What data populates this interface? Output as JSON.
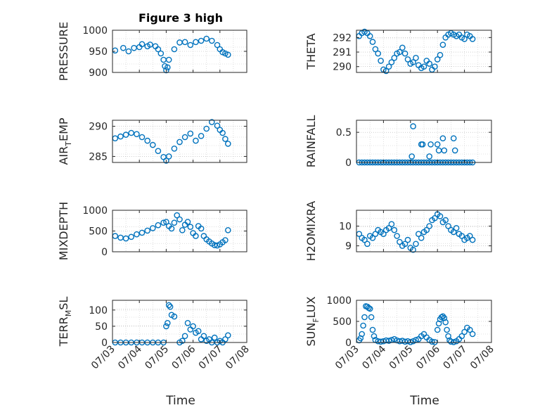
{
  "figure": {
    "title": "Figure 3 high",
    "xlabel": "Time",
    "marker_color": "#0072bd"
  },
  "chart_data": [
    {
      "type": "scatter",
      "name": "PRESSURE",
      "ylabel": "PRESSURE",
      "ylim": [
        900,
        1000
      ],
      "yticks": [
        900,
        950,
        1000
      ],
      "ytick_labels": [
        "900",
        "950",
        "1000"
      ],
      "grid": true,
      "x": [
        3.1,
        3.4,
        3.6,
        3.8,
        4.0,
        4.1,
        4.3,
        4.4,
        4.6,
        4.7,
        4.8,
        4.9,
        4.95,
        5.0,
        5.05,
        5.1,
        5.3,
        5.5,
        5.7,
        5.9,
        6.1,
        6.3,
        6.5,
        6.7,
        6.9,
        7.0,
        7.1,
        7.2,
        7.3
      ],
      "y": [
        952,
        958,
        950,
        958,
        960,
        967,
        962,
        966,
        962,
        955,
        945,
        930,
        915,
        905,
        912,
        930,
        955,
        971,
        972,
        965,
        972,
        975,
        980,
        975,
        965,
        955,
        948,
        945,
        942
      ]
    },
    {
      "type": "scatter",
      "name": "THETA",
      "ylabel": "THETA",
      "ylim": [
        289.6,
        292.5
      ],
      "yticks": [
        290,
        291,
        292
      ],
      "ytick_labels": [
        "290",
        "291",
        "292"
      ],
      "grid": true,
      "x": [
        3.1,
        3.2,
        3.3,
        3.4,
        3.5,
        3.6,
        3.7,
        3.8,
        3.9,
        4.0,
        4.1,
        4.2,
        4.3,
        4.4,
        4.5,
        4.6,
        4.7,
        4.8,
        4.9,
        5.0,
        5.1,
        5.2,
        5.3,
        5.4,
        5.5,
        5.6,
        5.7,
        5.8,
        5.9,
        6.0,
        6.1,
        6.2,
        6.3,
        6.4,
        6.5,
        6.6,
        6.7,
        6.8,
        6.9,
        7.0,
        7.1,
        7.2,
        7.3
      ],
      "y": [
        292.1,
        292.3,
        292.4,
        292.3,
        292.1,
        291.7,
        291.2,
        290.9,
        290.4,
        289.8,
        289.7,
        290.0,
        290.3,
        290.6,
        290.9,
        291.0,
        291.3,
        290.9,
        290.5,
        290.2,
        290.3,
        290.6,
        290.1,
        289.9,
        290.0,
        290.4,
        290.2,
        289.8,
        290.0,
        290.5,
        290.8,
        291.5,
        292.0,
        292.2,
        292.3,
        292.2,
        292.1,
        292.2,
        292.0,
        291.9,
        292.2,
        292.1,
        291.9
      ]
    },
    {
      "type": "scatter",
      "name": "AIR_TEMP",
      "ylabel": "AIR_TEMP",
      "ylim": [
        284,
        291
      ],
      "yticks": [
        285,
        290
      ],
      "ytick_labels": [
        "285",
        "290"
      ],
      "grid": true,
      "x": [
        3.1,
        3.3,
        3.5,
        3.7,
        3.9,
        4.1,
        4.3,
        4.5,
        4.7,
        4.9,
        5.0,
        5.1,
        5.3,
        5.5,
        5.7,
        5.9,
        6.1,
        6.3,
        6.5,
        6.7,
        6.9,
        7.0,
        7.1,
        7.2,
        7.3
      ],
      "y": [
        288.0,
        288.3,
        288.6,
        288.9,
        288.7,
        288.2,
        287.6,
        286.9,
        285.9,
        284.9,
        284.3,
        285.0,
        286.3,
        287.4,
        288.2,
        288.8,
        287.6,
        288.4,
        289.6,
        290.7,
        290.1,
        289.4,
        288.9,
        287.9,
        287.1
      ]
    },
    {
      "type": "scatter",
      "name": "RAINFALL",
      "ylabel": "RAINFALL",
      "ylim": [
        0,
        0.7
      ],
      "yticks": [
        0,
        0.5
      ],
      "ytick_labels": [
        "0",
        "0.5"
      ],
      "grid": true,
      "x": [
        3.1,
        3.2,
        3.3,
        3.4,
        3.5,
        3.6,
        3.7,
        3.8,
        3.9,
        4.0,
        4.1,
        4.2,
        4.3,
        4.4,
        4.5,
        4.6,
        4.7,
        4.8,
        4.9,
        5.0,
        5.1,
        5.2,
        5.3,
        5.4,
        5.5,
        5.6,
        5.7,
        5.8,
        5.9,
        6.0,
        6.1,
        6.2,
        6.3,
        6.4,
        6.5,
        6.6,
        6.7,
        6.8,
        6.9,
        7.0,
        7.1,
        7.2,
        7.3,
        5.1,
        5.4,
        5.45,
        5.7,
        5.75,
        5.05,
        6.0,
        6.05,
        6.2,
        6.25,
        6.6,
        6.65
      ],
      "y": [
        0,
        0,
        0,
        0,
        0,
        0,
        0,
        0,
        0,
        0,
        0,
        0,
        0,
        0,
        0,
        0,
        0,
        0,
        0,
        0,
        0,
        0,
        0,
        0,
        0,
        0,
        0,
        0,
        0,
        0,
        0,
        0,
        0,
        0,
        0,
        0,
        0,
        0,
        0,
        0,
        0,
        0,
        0,
        0.6,
        0.3,
        0.3,
        0.1,
        0.3,
        0.1,
        0.3,
        0.2,
        0.4,
        0.2,
        0.4,
        0.2
      ]
    },
    {
      "type": "scatter",
      "name": "MIXDEPTH",
      "ylabel": "MIXDEPTH",
      "ylim": [
        0,
        1000
      ],
      "yticks": [
        0,
        500,
        1000
      ],
      "ytick_labels": [
        "0",
        "500",
        "1000"
      ],
      "grid": true,
      "x": [
        3.1,
        3.3,
        3.5,
        3.7,
        3.9,
        4.1,
        4.3,
        4.5,
        4.7,
        4.9,
        5.0,
        5.1,
        5.2,
        5.3,
        5.4,
        5.5,
        5.6,
        5.7,
        5.8,
        5.9,
        6.0,
        6.1,
        6.2,
        6.3,
        6.4,
        6.5,
        6.6,
        6.7,
        6.8,
        6.9,
        7.0,
        7.1,
        7.2,
        7.3
      ],
      "y": [
        380,
        340,
        320,
        360,
        420,
        460,
        510,
        570,
        640,
        700,
        720,
        620,
        560,
        700,
        880,
        780,
        520,
        650,
        720,
        600,
        450,
        380,
        620,
        560,
        380,
        300,
        250,
        200,
        160,
        150,
        180,
        230,
        280,
        520
      ]
    },
    {
      "type": "scatter",
      "name": "H2OMIXRA",
      "ylabel": "H2OMIXRA",
      "ylim": [
        8.7,
        10.8
      ],
      "yticks": [
        9,
        10
      ],
      "ytick_labels": [
        "9",
        "10"
      ],
      "grid": true,
      "x": [
        3.1,
        3.2,
        3.3,
        3.4,
        3.5,
        3.6,
        3.7,
        3.8,
        3.9,
        4.0,
        4.1,
        4.2,
        4.3,
        4.4,
        4.5,
        4.6,
        4.7,
        4.8,
        4.9,
        5.0,
        5.1,
        5.2,
        5.3,
        5.4,
        5.5,
        5.6,
        5.7,
        5.8,
        5.9,
        6.0,
        6.1,
        6.2,
        6.3,
        6.4,
        6.5,
        6.6,
        6.7,
        6.8,
        6.9,
        7.0,
        7.1,
        7.2,
        7.3
      ],
      "y": [
        9.6,
        9.4,
        9.3,
        9.1,
        9.5,
        9.4,
        9.6,
        9.8,
        9.7,
        9.6,
        9.8,
        9.9,
        10.1,
        9.8,
        9.5,
        9.2,
        9.0,
        9.1,
        9.3,
        8.9,
        8.8,
        9.1,
        9.6,
        9.4,
        9.7,
        9.8,
        10.0,
        10.3,
        10.4,
        10.6,
        10.5,
        10.2,
        10.3,
        10.0,
        9.8,
        9.7,
        9.9,
        9.6,
        9.5,
        9.3,
        9.4,
        9.5,
        9.3
      ]
    },
    {
      "type": "scatter",
      "name": "TERR_MSL",
      "ylabel": "TERR_MSL",
      "ylim": [
        0,
        130
      ],
      "yticks": [
        0,
        50,
        100
      ],
      "ytick_labels": [
        "0",
        "50",
        "100"
      ],
      "grid": true,
      "x": [
        3.1,
        3.3,
        3.5,
        3.7,
        3.9,
        4.1,
        4.3,
        4.5,
        4.7,
        4.9,
        5.0,
        5.05,
        5.1,
        5.15,
        5.2,
        5.3,
        5.5,
        5.6,
        5.7,
        5.8,
        5.9,
        6.0,
        6.1,
        6.2,
        6.3,
        6.4,
        6.5,
        6.6,
        6.7,
        6.8,
        6.9,
        7.0,
        7.1,
        7.2,
        7.3
      ],
      "y": [
        0,
        0,
        0,
        0,
        0,
        0,
        0,
        0,
        0,
        0,
        50,
        60,
        115,
        110,
        85,
        80,
        0,
        5,
        20,
        60,
        40,
        50,
        30,
        35,
        10,
        20,
        5,
        10,
        0,
        15,
        0,
        5,
        0,
        10,
        22
      ]
    },
    {
      "type": "scatter",
      "name": "SUN_FLUX",
      "ylabel": "SUN_FLUX",
      "ylim": [
        0,
        1000
      ],
      "yticks": [
        0,
        500,
        1000
      ],
      "ytick_labels": [
        "0",
        "500",
        "1000"
      ],
      "grid": true,
      "x": [
        3.1,
        3.15,
        3.2,
        3.25,
        3.3,
        3.35,
        3.4,
        3.45,
        3.5,
        3.55,
        3.6,
        3.65,
        3.7,
        3.8,
        3.9,
        4.0,
        4.1,
        4.2,
        4.3,
        4.4,
        4.5,
        4.6,
        4.7,
        4.8,
        4.9,
        5.0,
        5.1,
        5.2,
        5.3,
        5.4,
        5.5,
        5.6,
        5.7,
        5.8,
        5.9,
        6.0,
        6.05,
        6.1,
        6.15,
        6.2,
        6.25,
        6.3,
        6.35,
        6.4,
        6.45,
        6.5,
        6.6,
        6.7,
        6.8,
        6.9,
        7.0,
        7.1,
        7.2,
        7.3
      ],
      "y": [
        50,
        100,
        200,
        400,
        600,
        860,
        850,
        820,
        800,
        600,
        300,
        150,
        60,
        30,
        20,
        30,
        50,
        40,
        60,
        80,
        50,
        30,
        40,
        20,
        30,
        10,
        30,
        60,
        80,
        150,
        200,
        120,
        60,
        20,
        10,
        300,
        450,
        550,
        600,
        620,
        580,
        480,
        300,
        150,
        50,
        20,
        10,
        30,
        80,
        150,
        250,
        350,
        300,
        200
      ]
    }
  ],
  "xaxis": {
    "xlim": [
      3,
      8
    ],
    "ticks": [
      3,
      4,
      5,
      6,
      7,
      8
    ],
    "tick_labels": [
      "07/03",
      "07/04",
      "07/05",
      "07/06",
      "07/07",
      "07/08"
    ]
  }
}
